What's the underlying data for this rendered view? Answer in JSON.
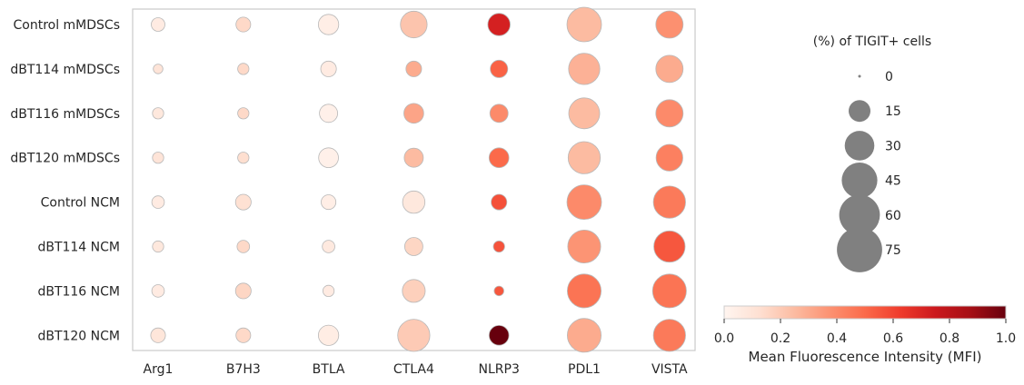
{
  "chart_data": {
    "type": "scatter",
    "subtype": "dot-plot",
    "x_categories": [
      "Arg1",
      "B7H3",
      "BTLA",
      "CTLA4",
      "NLRP3",
      "PDL1",
      "VISTA"
    ],
    "y_categories": [
      "Control mMDSCs",
      "dBT114 mMDSCs",
      "dBT116 mMDSCs",
      "dBT120 mMDSCs",
      "Control NCM",
      "dBT114 NCM",
      "dBT116 NCM",
      "dBT120 NCM"
    ],
    "size_values": [
      [
        5,
        6,
        13,
        24,
        16,
        42,
        25
      ],
      [
        2,
        3,
        7,
        7,
        9,
        34,
        25
      ],
      [
        3,
        3,
        10,
        12,
        10,
        33,
        25
      ],
      [
        3,
        3,
        12,
        11,
        12,
        36,
        24
      ],
      [
        4,
        7,
        6,
        16,
        7,
        42,
        36
      ],
      [
        3,
        4,
        4,
        10,
        3,
        38,
        34
      ],
      [
        4,
        7,
        3,
        17,
        2,
        40,
        40
      ],
      [
        6,
        6,
        13,
        36,
        12,
        40,
        36
      ]
    ],
    "color_values": [
      [
        0.06,
        0.15,
        0.04,
        0.22,
        0.72,
        0.25,
        0.38
      ],
      [
        0.1,
        0.15,
        0.06,
        0.3,
        0.52,
        0.28,
        0.3
      ],
      [
        0.08,
        0.15,
        0.03,
        0.32,
        0.4,
        0.25,
        0.4
      ],
      [
        0.1,
        0.13,
        0.03,
        0.25,
        0.5,
        0.25,
        0.43
      ],
      [
        0.06,
        0.12,
        0.04,
        0.08,
        0.57,
        0.4,
        0.45
      ],
      [
        0.08,
        0.15,
        0.07,
        0.16,
        0.56,
        0.37,
        0.55
      ],
      [
        0.06,
        0.16,
        0.06,
        0.18,
        0.55,
        0.47,
        0.47
      ],
      [
        0.09,
        0.15,
        0.05,
        0.2,
        1.0,
        0.3,
        0.45
      ]
    ],
    "size_legend": {
      "title": "(%) of TIGIT+ cells",
      "labels": [
        "0",
        "15",
        "30",
        "45",
        "60",
        "75"
      ],
      "values": [
        0,
        15,
        30,
        45,
        60,
        75
      ]
    },
    "colorbar": {
      "label": "Mean Fluorescence Intensity (MFI)",
      "ticks": [
        "0.0",
        "0.2",
        "0.4",
        "0.6",
        "0.8",
        "1.0"
      ],
      "range": [
        0,
        1
      ],
      "colors": [
        "#fff5f0",
        "#fee0d2",
        "#fcbba1",
        "#fc9272",
        "#fb6a4a",
        "#ef3b2c",
        "#cb181d",
        "#a50f15",
        "#67000d"
      ]
    },
    "legend_color": "#808080",
    "grid": false
  }
}
